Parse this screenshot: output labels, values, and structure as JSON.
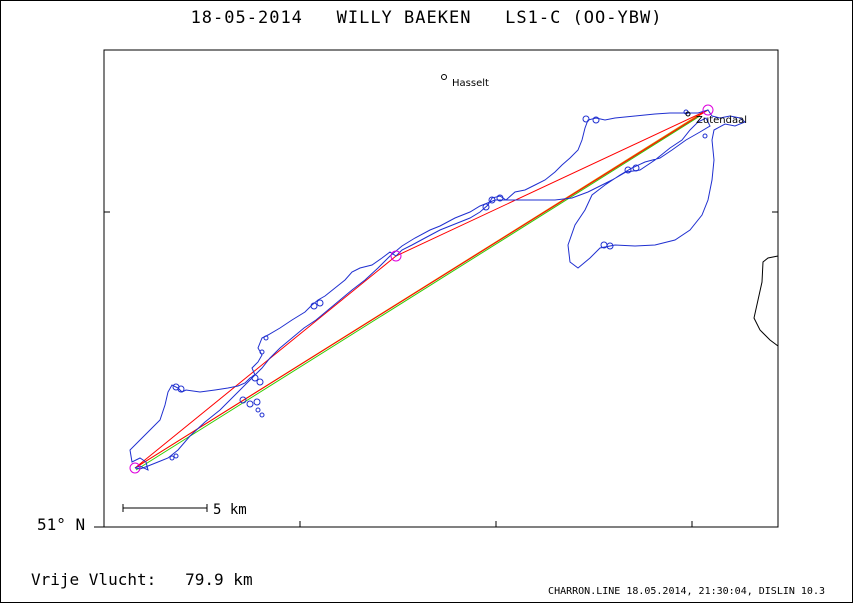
{
  "header": {
    "title": "18-05-2014   WILLY BAEKEN   LS1-C (OO-YBW)"
  },
  "map": {
    "places": [
      {
        "name": "Hasselt"
      },
      {
        "name": "Zutendaal"
      }
    ],
    "scale_bar_label": "5 km",
    "latitude_label": "51° N",
    "colors": {
      "track": "#1f2fd0",
      "task_red": "#ff0000",
      "task_orange": "#e08a00",
      "task_green": "#33cc00",
      "turnpoint": "#dd00dd"
    }
  },
  "stats": {
    "free_flight_label": "Vrije Vlucht:",
    "free_flight_value": "79.9 km"
  },
  "footer": {
    "text": "CHARRON.LINE 18.05.2014, 21:30:04, DISLIN 10.3"
  }
}
